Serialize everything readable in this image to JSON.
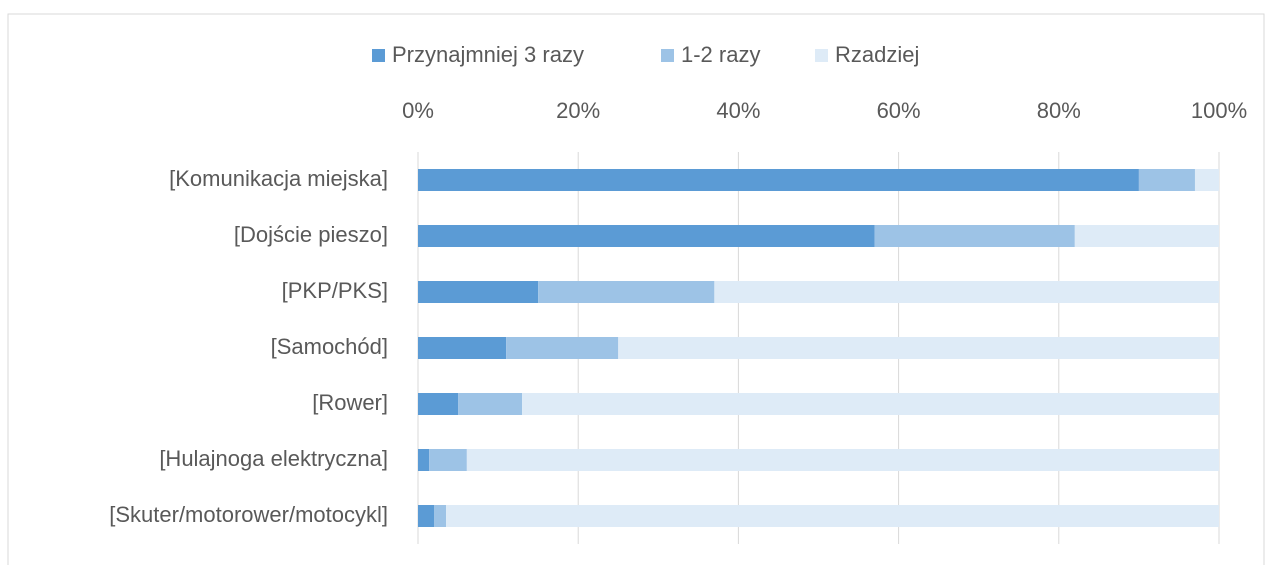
{
  "chart_data": {
    "type": "stacked_barh",
    "categories": [
      "[Komunikacja miejska]",
      "[Dojście pieszo]",
      "[PKP/PKS]",
      "[Samochód]",
      "[Rower]",
      "[Hulajnoga elektryczna]",
      "[Skuter/motorower/motocykl]"
    ],
    "series": [
      {
        "name": "Przynajmniej 3 razy",
        "color": "#5b9bd5",
        "values": [
          90,
          57,
          15,
          11,
          5,
          1.4,
          2
        ]
      },
      {
        "name": "1-2 razy",
        "color": "#9dc3e6",
        "values": [
          7,
          25,
          22,
          14,
          8,
          4.7,
          1.5
        ]
      },
      {
        "name": "Rzadziej",
        "color": "#deebf7",
        "values": [
          3,
          18,
          63,
          75,
          87,
          93.9,
          96.5
        ]
      }
    ],
    "xlim": [
      0,
      100
    ],
    "xticks": [
      {
        "value": 0,
        "label": "0%"
      },
      {
        "value": 20,
        "label": "20%"
      },
      {
        "value": 40,
        "label": "40%"
      },
      {
        "value": 60,
        "label": "60%"
      },
      {
        "value": 80,
        "label": "80%"
      },
      {
        "value": 100,
        "label": "100%"
      }
    ],
    "grid": true,
    "legend": "top"
  }
}
